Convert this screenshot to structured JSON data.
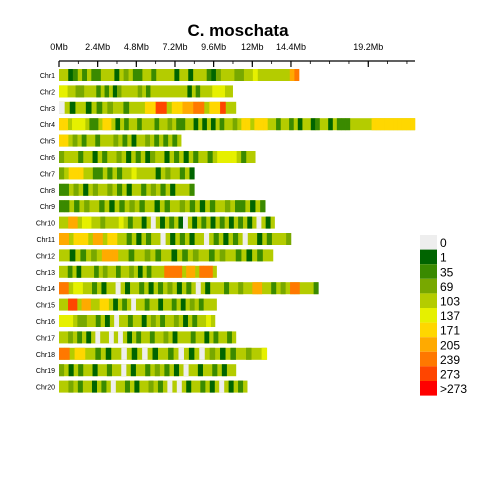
{
  "chart_data": {
    "type": "heatmap",
    "title": "C. moschata",
    "x_unit": "Mb",
    "x_max_mb": 22.1,
    "ticks": [
      {
        "label": "0Mb",
        "value": 0
      },
      {
        "label": "2.4Mb",
        "value": 2.4
      },
      {
        "label": "4.8Mb",
        "value": 4.8
      },
      {
        "label": "7.2Mb",
        "value": 7.2
      },
      {
        "label": "9.6Mb",
        "value": 9.6
      },
      {
        "label": "12Mb",
        "value": 12
      },
      {
        "label": "14.4Mb",
        "value": 14.4
      },
      {
        "label": "19.2Mb",
        "value": 19.2
      }
    ],
    "legend": {
      "placement": "right",
      "bins": [
        {
          "label": "0",
          "color": "#eeeeee"
        },
        {
          "label": "1",
          "color": "#006400"
        },
        {
          "label": "35",
          "color": "#3a8a00"
        },
        {
          "label": "69",
          "color": "#78a800"
        },
        {
          "label": "103",
          "color": "#b4cc00"
        },
        {
          "label": "137",
          "color": "#e6f000"
        },
        {
          "label": "171",
          "color": "#ffd700"
        },
        {
          "label": "205",
          "color": "#ffaa00"
        },
        {
          "label": "239",
          "color": "#ff7800"
        },
        {
          "label": "273",
          "color": "#ff4500"
        },
        {
          "label": ">273",
          "color": "#ff0000"
        }
      ]
    },
    "chromosomes": [
      {
        "name": "Chr1",
        "length_mb": 14.9,
        "profile": "..12.2.22...1.3.22..2....1..1...213...33..4.......78"
      },
      {
        "name": "Chr2",
        "length_mb": 10.8,
        "profile": "55..33...2.2.13....3.2.........1.2...444.."
      },
      {
        "name": "Chr3",
        "length_mb": 11.0,
        "profile": "0.1..1.2.3..2...6699.667788.669.."
      },
      {
        "name": "Chr4",
        "length_mb": 22.1,
        "profile": "66.555.22.66.1.2..2...2..3.22..1.1.1.2..3.66.666..2..2.1..12..1.222.....6666666666"
      },
      {
        "name": "Chr5",
        "length_mb": 7.6,
        "profile": "66.3.2..2...3.2.1..3.2.2.2."
      },
      {
        "name": "Chr6",
        "length_mb": 12.2,
        "profile": "3...2..1.2..3.1.2.13..1.2.1.2..2.5555.2.."
      },
      {
        "name": "Chr7",
        "length_mb": 8.4,
        "profile": "3.666..22.2.2..4....1.3..2.1"
      },
      {
        "name": "Chr8",
        "length_mb": 8.4,
        "profile": "22.3.1.3..3.2.1..2.3.2.1...2"
      },
      {
        "name": "Chr9",
        "length_mb": 12.8,
        "profile": "22.2.3..2.1.2.3.2..1.2..3.2.1.2..3.22.1.2"
      },
      {
        "name": "Chr10",
        "length_mb": 13.4,
        "profile": "..77.55..3...4.2..1.0.1.2.10.1.2.1.2.1.2.1.0.1."
      },
      {
        "name": "Chr11",
        "length_mb": 14.4,
        "profile": "77.666.77.66..2.1.2..0.1.2.1..0.2.1.2.0..1.2...3"
      },
      {
        "name": "Chr12",
        "length_mb": 13.3,
        "profile": "..1.2.3.777..2..3.2..1.2.3..2.3..2.1.2.."
      },
      {
        "name": "Chr13",
        "length_mb": 9.8,
        "profile": "..2.1...2.3..2..3.1.2...8888.77.888."
      },
      {
        "name": "Chr14",
        "length_mb": 16.1,
        "profile": "88.55..2.1..0.1..2.1.2.3.1.2.0.1...2..3..77..2.3.88...2"
      },
      {
        "name": "Chr15",
        "length_mb": 9.8,
        "profile": "..99.77..66.1.2.0..2..1..2.1.3.2..."
      },
      {
        "name": "Chr16",
        "length_mb": 9.7,
        "profile": "444.33..2.1.0..2..1.3.2..3.1.2..4."
      },
      {
        "name": "Chr17",
        "length_mb": 11.0,
        "profile": "..3.2.1.0..0.0.1.2..2..3.1...2..1.2..2."
      },
      {
        "name": "Chr18",
        "length_mb": 12.9,
        "profile": "88.66..2.1..0.1.0.1..2.0.1.0.3.1.2..3..4"
      },
      {
        "name": "Chr19",
        "length_mb": 11.0,
        "profile": "3.1.2..1..2..0.1..2.3.2.1.0..1..2.1.."
      },
      {
        "name": "Chr20",
        "length_mb": 11.7,
        "profile": "..3.2..1.2.0..2.1..3.2.0.0.1..2.1.0.1.2."
      }
    ]
  }
}
